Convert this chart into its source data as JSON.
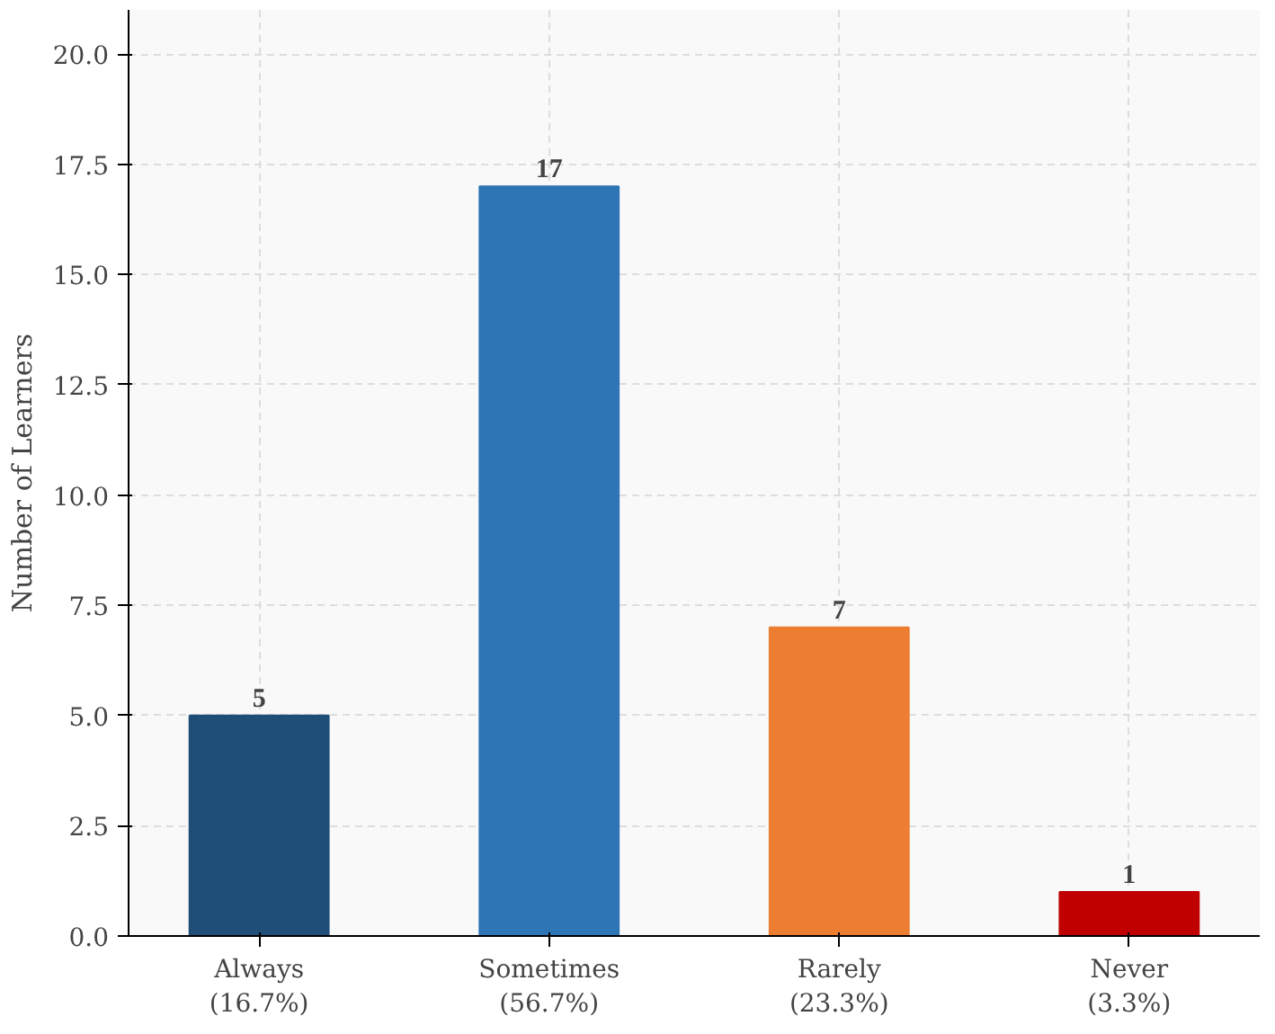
{
  "chart_data": {
    "type": "bar",
    "ylabel": "Number of Learners",
    "categories": [
      "Always\n(16.7%)",
      "Sometimes\n(56.7%)",
      "Rarely\n(23.3%)",
      "Never\n(3.3%)"
    ],
    "values": [
      5,
      17,
      7,
      1
    ],
    "colors": [
      "#1f4e79",
      "#2e75b6",
      "#ed7d31",
      "#c00000"
    ],
    "ylim": [
      0,
      21
    ],
    "yticks": [
      {
        "value": 0,
        "label": "0.0"
      },
      {
        "value": 2.5,
        "label": "2.5"
      },
      {
        "value": 5,
        "label": "5.0"
      },
      {
        "value": 7.5,
        "label": "7.5"
      },
      {
        "value": 10,
        "label": "10.0"
      },
      {
        "value": 12.5,
        "label": "12.5"
      },
      {
        "value": 15,
        "label": "15.0"
      },
      {
        "value": 17.5,
        "label": "17.5"
      },
      {
        "value": 20,
        "label": "20.0"
      }
    ],
    "grid": true,
    "data_labels": true
  }
}
